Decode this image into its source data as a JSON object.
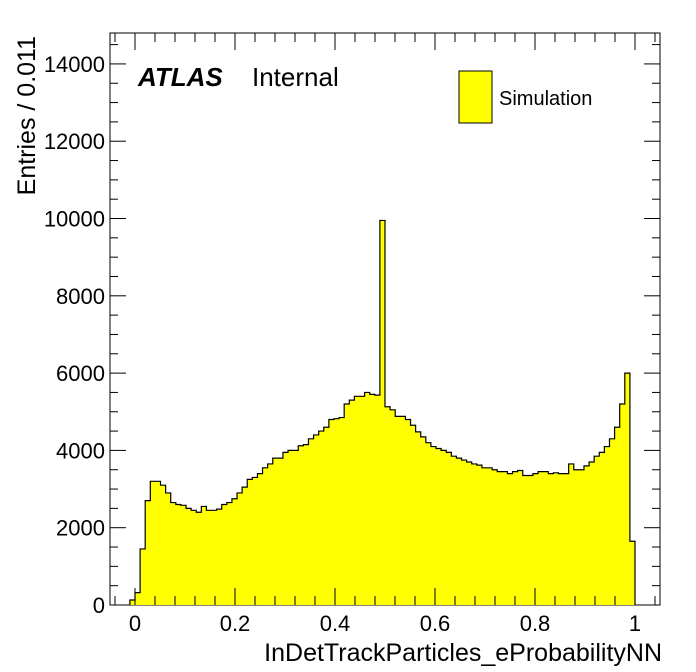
{
  "labels": {
    "atlas": "ATLAS",
    "internal": "Internal"
  },
  "legend": {
    "entry": "Simulation",
    "color": "#ffff00"
  },
  "chart_data": {
    "type": "bar",
    "histogram": true,
    "xlabel": "InDetTrackParticles_eProbabilityNN",
    "ylabel": "Entries / 0.011",
    "xlim": [
      -0.05,
      1.05
    ],
    "ylim": [
      0,
      14800
    ],
    "x_ticks": [
      0,
      0.2,
      0.4,
      0.6,
      0.8,
      1
    ],
    "x_tick_labels": [
      "0",
      "0.2",
      "0.4",
      "0.6",
      "0.8",
      "1"
    ],
    "y_ticks": [
      0,
      2000,
      4000,
      6000,
      8000,
      10000,
      12000,
      14000
    ],
    "y_tick_labels": [
      "0",
      "2000",
      "4000",
      "6000",
      "8000",
      "10000",
      "12000",
      "14000"
    ],
    "fill_color": "#ffff00",
    "line_color": "#000000",
    "series": [
      {
        "name": "Simulation",
        "values": [
          130,
          320,
          1450,
          2700,
          3200,
          3200,
          3100,
          2900,
          2650,
          2600,
          2580,
          2500,
          2450,
          2400,
          2550,
          2450,
          2450,
          2480,
          2600,
          2650,
          2750,
          2900,
          3050,
          3250,
          3300,
          3400,
          3550,
          3650,
          3800,
          3800,
          3950,
          4000,
          4000,
          4120,
          4150,
          4300,
          4400,
          4500,
          4600,
          4800,
          4820,
          4850,
          5200,
          5300,
          5400,
          5400,
          5500,
          5450,
          5430,
          9950,
          5130,
          5050,
          4880,
          4880,
          4800,
          4650,
          4480,
          4350,
          4200,
          4100,
          4050,
          4000,
          3950,
          3850,
          3800,
          3750,
          3700,
          3650,
          3620,
          3550,
          3550,
          3500,
          3450,
          3450,
          3400,
          3450,
          3480,
          3350,
          3350,
          3400,
          3450,
          3450,
          3400,
          3420,
          3400,
          3400,
          3650,
          3500,
          3500,
          3600,
          3700,
          3850,
          3950,
          4100,
          4300,
          4600,
          5200,
          6000,
          1650
        ]
      }
    ]
  }
}
